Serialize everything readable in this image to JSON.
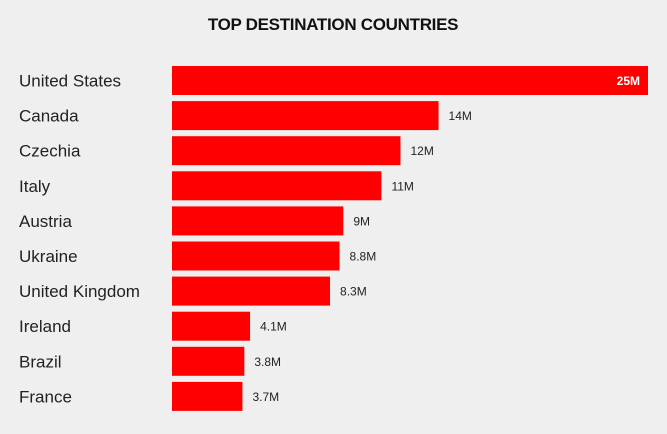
{
  "chart_data": {
    "type": "bar",
    "orientation": "horizontal",
    "title": "TOP DESTINATION COUNTRIES",
    "categories": [
      "United States",
      "Canada",
      "Czechia",
      "Italy",
      "Austria",
      "Ukraine",
      "United Kingdom",
      "Ireland",
      "Brazil",
      "France"
    ],
    "values": [
      25,
      14,
      12,
      11,
      9,
      8.8,
      8.3,
      4.1,
      3.8,
      3.7
    ],
    "value_labels": [
      "25M",
      "14M",
      "12M",
      "11M",
      "9M",
      "8.8M",
      "8.3M",
      "4.1M",
      "3.8M",
      "3.7M"
    ],
    "bar_color": "#ff0000",
    "background": "#efefef",
    "grid": false,
    "legend": "none"
  }
}
